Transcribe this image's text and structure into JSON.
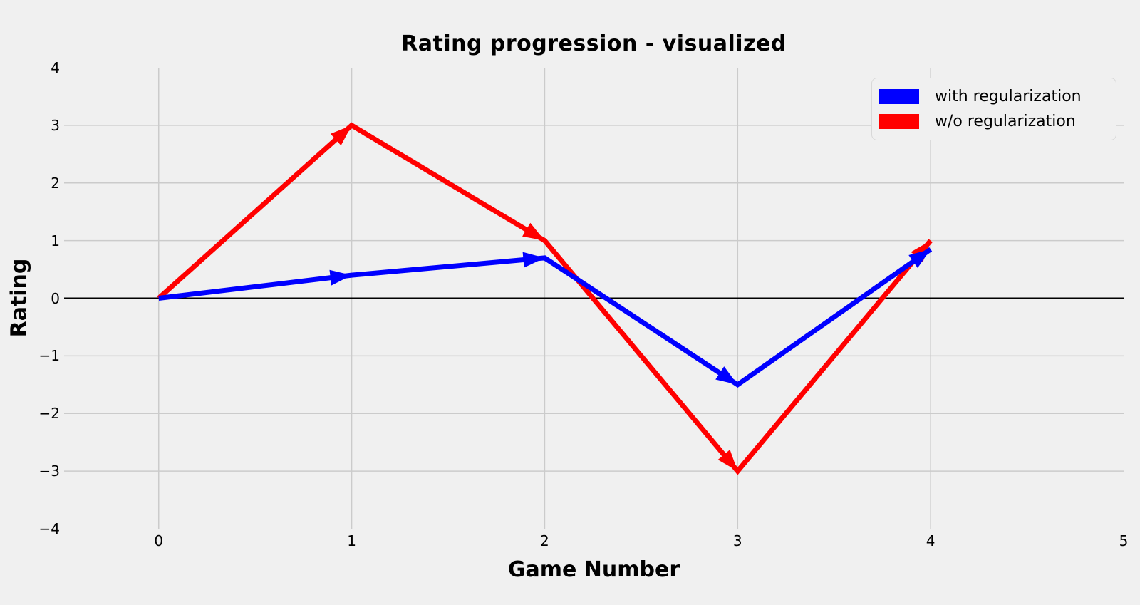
{
  "chart_data": {
    "type": "line",
    "title": "Rating progression - visualized",
    "xlabel": "Game Number",
    "ylabel": "Rating",
    "x": [
      0,
      1,
      2,
      3,
      4
    ],
    "series": [
      {
        "name": "with regularization",
        "color": "#0000ff",
        "values": [
          0,
          0.4,
          0.7,
          -1.5,
          0.85
        ]
      },
      {
        "name": "w/o regularization",
        "color": "#ff0000",
        "values": [
          0,
          3.0,
          1.0,
          -3.0,
          1.0
        ]
      }
    ],
    "marker": "arrowhead-at-segment-end",
    "line_width": 7,
    "zero_line": {
      "y": 0,
      "color": "#000000"
    },
    "axes": {
      "xlim": [
        -0.49,
        5.0
      ],
      "ylim": [
        -4,
        4
      ],
      "x_ticks": [
        0,
        1,
        2,
        3,
        4,
        5
      ],
      "x_tick_labels": [
        "0",
        "1",
        "2",
        "3",
        "4",
        "5"
      ],
      "y_ticks": [
        -4,
        -3,
        -2,
        -1,
        0,
        1,
        2,
        3,
        4
      ],
      "y_tick_labels": [
        "−4",
        "−3",
        "−2",
        "−1",
        "0",
        "1",
        "2",
        "3",
        "4"
      ]
    },
    "grid": true,
    "legend": {
      "position": "upper right",
      "entries": [
        "with regularization",
        "w/o regularization"
      ]
    },
    "style": {
      "background": "#f0f0f0",
      "grid_color": "#cbcbcb",
      "text_color": "#000000"
    }
  }
}
